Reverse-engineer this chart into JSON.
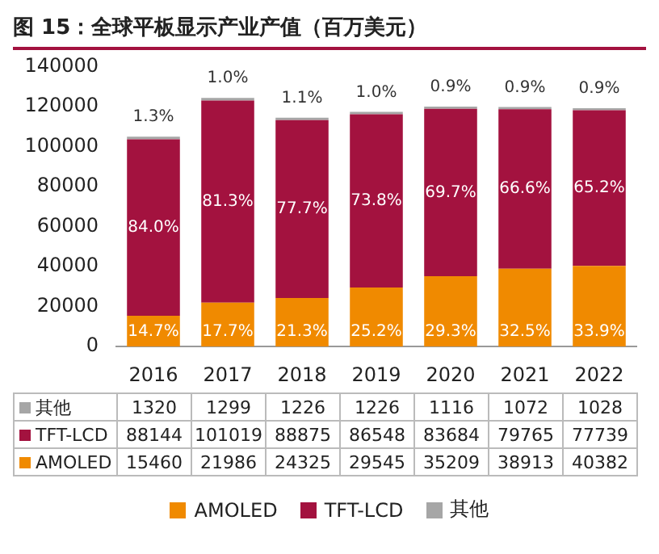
{
  "chart_data": {
    "type": "bar",
    "title": "图 15：全球平板显示产业产值（百万美元）",
    "categories": [
      "2016",
      "2017",
      "2018",
      "2019",
      "2020",
      "2021",
      "2022"
    ],
    "stacked": true,
    "data_labels": true,
    "legend": "bottom",
    "grid": false,
    "ylim": [
      0,
      140000
    ],
    "yticks": [
      0,
      20000,
      40000,
      60000,
      80000,
      100000,
      120000,
      140000
    ],
    "series": [
      {
        "name": "AMOLED",
        "color": "#f08a00",
        "values": [
          15460,
          21986,
          24325,
          29545,
          35209,
          38913,
          40382
        ]
      },
      {
        "name": "TFT-LCD",
        "color": "#a3123f",
        "values": [
          88144,
          101019,
          88875,
          86548,
          83684,
          79765,
          77739
        ]
      },
      {
        "name": "其他",
        "color": "#a6a6a6",
        "values": [
          1320,
          1299,
          1226,
          1226,
          1116,
          1072,
          1028
        ]
      }
    ],
    "annotations": [
      "14.7%",
      "17.7%",
      "21.3%",
      "25.2%",
      "29.3%",
      "32.5%",
      "33.9%",
      "84.0%",
      "81.3%",
      "77.7%",
      "73.8%",
      "69.7%",
      "66.6%",
      "65.2%",
      "1.3%",
      "1.0%",
      "1.1%",
      "1.0%",
      "0.9%",
      "0.9%",
      "0.9%"
    ]
  }
}
